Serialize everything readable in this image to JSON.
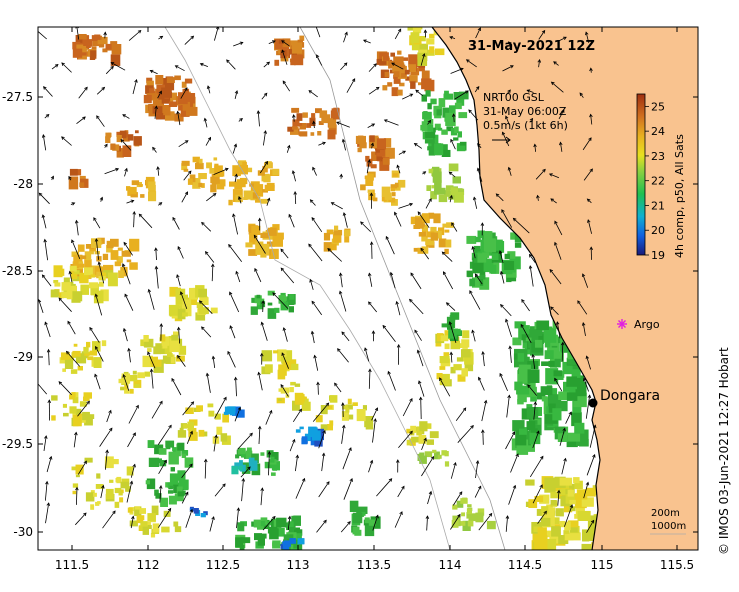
{
  "title": "31-May-2021 12Z",
  "vector_legend": {
    "line1": "NRT00 GSL",
    "line2": "31-May 06:00Z",
    "line3": "0.5m/s (1kt 6h)"
  },
  "colorbar": {
    "label": "4h comp, p50, All Sats",
    "ticks": [
      "25",
      "24",
      "23",
      "22",
      "21",
      "20",
      "19"
    ],
    "min": 19,
    "max": 25.5
  },
  "contours": {
    "line1": "200m",
    "line2": "1000m"
  },
  "places": {
    "argo": "Argo",
    "town": "Dongara"
  },
  "credit": "©  IMOS 03-Jun-2021 12:27 Hobart",
  "x_ticks": [
    "111.5",
    "112",
    "112.5",
    "113",
    "113.5",
    "114",
    "114.5",
    "115",
    "115.5"
  ],
  "y_ticks": [
    "-27.5",
    "-28",
    "-28.5",
    "-29",
    "-29.5",
    "-30"
  ],
  "colors": {
    "land": "#f9c38f",
    "sst_warm": "#c8641e",
    "sst_mid": "#e8c020",
    "sst_cool": "#38b840",
    "argo": "#e020e0"
  }
}
